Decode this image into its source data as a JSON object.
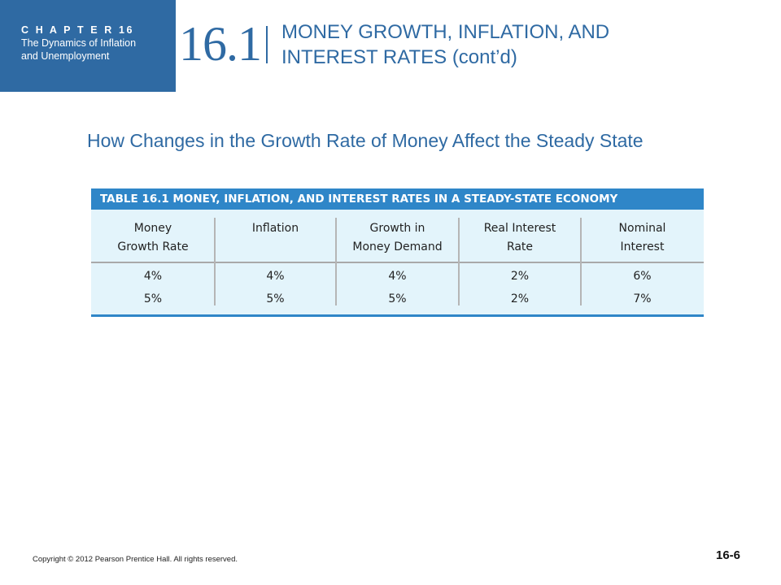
{
  "header": {
    "chapter_label": "C H A P T E R   16",
    "chapter_line1": "The Dynamics of Inflation",
    "chapter_line2": "and Unemployment",
    "section_number": "16.1",
    "section_title_line1": "MONEY GROWTH, INFLATION, AND",
    "section_title_line2": "INTEREST RATES (cont’d)"
  },
  "subtitle": "How Changes in the Growth Rate of Money Affect the Steady State",
  "table": {
    "title": "TABLE 16.1  MONEY, INFLATION, AND INTEREST RATES IN A STEADY-STATE ECONOMY",
    "columns": [
      {
        "line1": "Money",
        "line2": "Growth Rate"
      },
      {
        "line1": "Inflation",
        "line2": ""
      },
      {
        "line1": "Growth in",
        "line2": "Money Demand"
      },
      {
        "line1": "Real Interest",
        "line2": "Rate"
      },
      {
        "line1": "Nominal",
        "line2": "Interest"
      }
    ],
    "rows": [
      [
        "4%",
        "4%",
        "4%",
        "2%",
        "6%"
      ],
      [
        "5%",
        "5%",
        "5%",
        "2%",
        "7%"
      ]
    ]
  },
  "footer": {
    "copyright": "Copyright © 2012 Pearson Prentice Hall. All rights reserved.",
    "page_number": "16-6"
  },
  "colors": {
    "brand_blue": "#2f6aa3",
    "table_header_blue": "#2f86c8",
    "table_background": "#e3f4fb"
  }
}
